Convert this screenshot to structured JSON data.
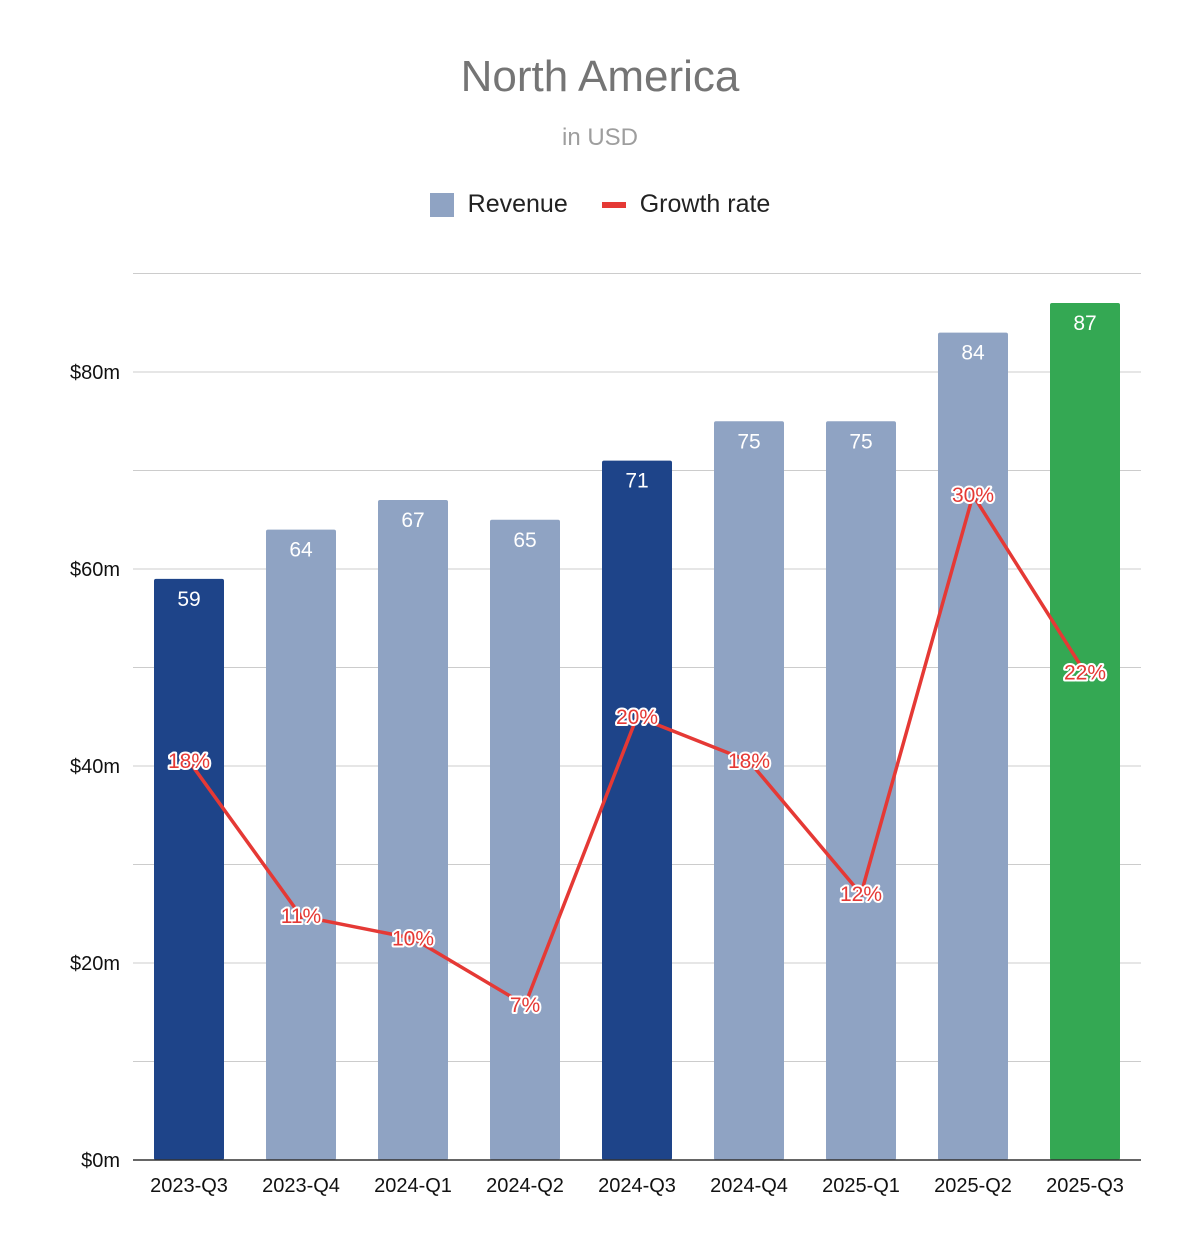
{
  "chart_data": {
    "type": "bar",
    "title": "North America",
    "subtitle": "in USD",
    "categories": [
      "2023-Q3",
      "2023-Q4",
      "2024-Q1",
      "2024-Q2",
      "2024-Q3",
      "2024-Q4",
      "2025-Q1",
      "2025-Q2",
      "2025-Q3"
    ],
    "series": [
      {
        "name": "Revenue",
        "type": "bar",
        "values": [
          59,
          64,
          67,
          65,
          71,
          75,
          75,
          84,
          87
        ],
        "value_labels": [
          "59",
          "64",
          "67",
          "65",
          "71",
          "75",
          "75",
          "84",
          "87"
        ]
      },
      {
        "name": "Growth rate",
        "type": "line",
        "values": [
          18,
          11,
          10,
          7,
          20,
          18,
          12,
          30,
          22
        ],
        "value_labels": [
          "18%",
          "11%",
          "10%",
          "7%",
          "20%",
          "18%",
          "12%",
          "30%",
          "22%"
        ]
      }
    ],
    "y_ticks": [
      "$0m",
      "$20m",
      "$40m",
      "$60m",
      "$80m"
    ],
    "ylim": [
      0,
      90
    ],
    "growth_rate_axis_max": 40,
    "grid": true,
    "legend_position": "top",
    "colors": {
      "bar_default": "#8fa3c3",
      "bar_highlight_q3": "#1e4489",
      "bar_latest": "#34a853",
      "line": "#e53935",
      "grid": "#cccccc"
    },
    "bar_color_keys": [
      "bar_highlight_q3",
      "bar_default",
      "bar_default",
      "bar_default",
      "bar_highlight_q3",
      "bar_default",
      "bar_default",
      "bar_default",
      "bar_latest"
    ]
  }
}
